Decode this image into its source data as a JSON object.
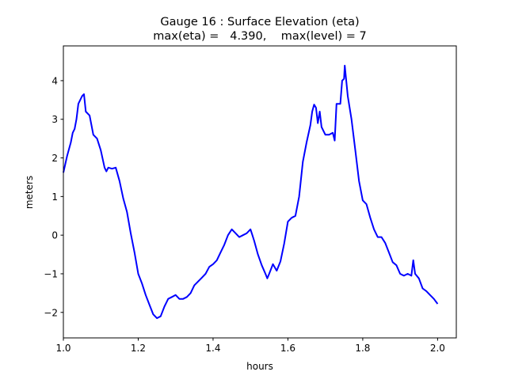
{
  "chart_data": {
    "type": "line",
    "title": "Gauge 16 : Surface Elevation (eta)",
    "subtitle": "max(eta) =   4.390,    max(level) = 7",
    "xlabel": "hours",
    "ylabel": "meters",
    "xlim": [
      1.0,
      2.05
    ],
    "ylim": [
      -2.66,
      4.9
    ],
    "grid": false,
    "xticks": [
      1.0,
      1.2,
      1.4,
      1.6,
      1.8,
      2.0
    ],
    "xtick_labels": [
      "1.0",
      "1.2",
      "1.4",
      "1.6",
      "1.8",
      "2.0"
    ],
    "yticks": [
      4,
      3,
      2,
      1,
      0,
      -1,
      -2
    ],
    "ytick_labels": [
      "4",
      "3",
      "2",
      "1",
      "0",
      "−1",
      "−2"
    ],
    "series": [
      {
        "name": "eta",
        "color": "#0000ff",
        "x": [
          1.0,
          1.01,
          1.02,
          1.025,
          1.03,
          1.035,
          1.04,
          1.05,
          1.055,
          1.06,
          1.07,
          1.08,
          1.09,
          1.1,
          1.11,
          1.115,
          1.12,
          1.13,
          1.14,
          1.15,
          1.16,
          1.17,
          1.18,
          1.19,
          1.2,
          1.21,
          1.22,
          1.23,
          1.24,
          1.25,
          1.26,
          1.27,
          1.28,
          1.29,
          1.3,
          1.31,
          1.32,
          1.33,
          1.34,
          1.35,
          1.36,
          1.37,
          1.38,
          1.39,
          1.4,
          1.41,
          1.42,
          1.43,
          1.44,
          1.45,
          1.46,
          1.47,
          1.48,
          1.49,
          1.5,
          1.505,
          1.51,
          1.52,
          1.53,
          1.54,
          1.545,
          1.55,
          1.56,
          1.57,
          1.58,
          1.59,
          1.6,
          1.61,
          1.62,
          1.63,
          1.64,
          1.65,
          1.66,
          1.665,
          1.67,
          1.675,
          1.68,
          1.685,
          1.69,
          1.7,
          1.71,
          1.72,
          1.725,
          1.73,
          1.74,
          1.745,
          1.75,
          1.752,
          1.76,
          1.77,
          1.78,
          1.79,
          1.8,
          1.81,
          1.82,
          1.83,
          1.84,
          1.85,
          1.86,
          1.87,
          1.88,
          1.89,
          1.9,
          1.91,
          1.92,
          1.93,
          1.935,
          1.94,
          1.95,
          1.96,
          1.97,
          1.98,
          1.99,
          2.0
        ],
        "y": [
          1.62,
          2.05,
          2.4,
          2.65,
          2.75,
          3.0,
          3.4,
          3.6,
          3.65,
          3.2,
          3.1,
          2.6,
          2.5,
          2.2,
          1.75,
          1.65,
          1.75,
          1.72,
          1.75,
          1.4,
          0.95,
          0.6,
          0.05,
          -0.45,
          -1.0,
          -1.25,
          -1.55,
          -1.8,
          -2.05,
          -2.15,
          -2.1,
          -1.85,
          -1.65,
          -1.6,
          -1.55,
          -1.65,
          -1.65,
          -1.6,
          -1.5,
          -1.3,
          -1.2,
          -1.1,
          -1.0,
          -0.82,
          -0.75,
          -0.65,
          -0.45,
          -0.25,
          0.0,
          0.15,
          0.05,
          -0.05,
          0.0,
          0.05,
          0.15,
          0.0,
          -0.15,
          -0.5,
          -0.78,
          -1.0,
          -1.12,
          -1.0,
          -0.75,
          -0.92,
          -0.68,
          -0.22,
          0.35,
          0.45,
          0.5,
          1.0,
          1.9,
          2.4,
          2.85,
          3.2,
          3.38,
          3.3,
          2.9,
          3.2,
          2.8,
          2.6,
          2.6,
          2.65,
          2.45,
          3.4,
          3.4,
          4.0,
          4.05,
          4.39,
          3.6,
          3.0,
          2.2,
          1.4,
          0.9,
          0.8,
          0.45,
          0.15,
          -0.05,
          -0.05,
          -0.2,
          -0.45,
          -0.7,
          -0.78,
          -1.0,
          -1.05,
          -1.0,
          -1.05,
          -0.65,
          -1.0,
          -1.12,
          -1.38,
          -1.45,
          -1.55,
          -1.65,
          -1.78
        ]
      }
    ]
  }
}
